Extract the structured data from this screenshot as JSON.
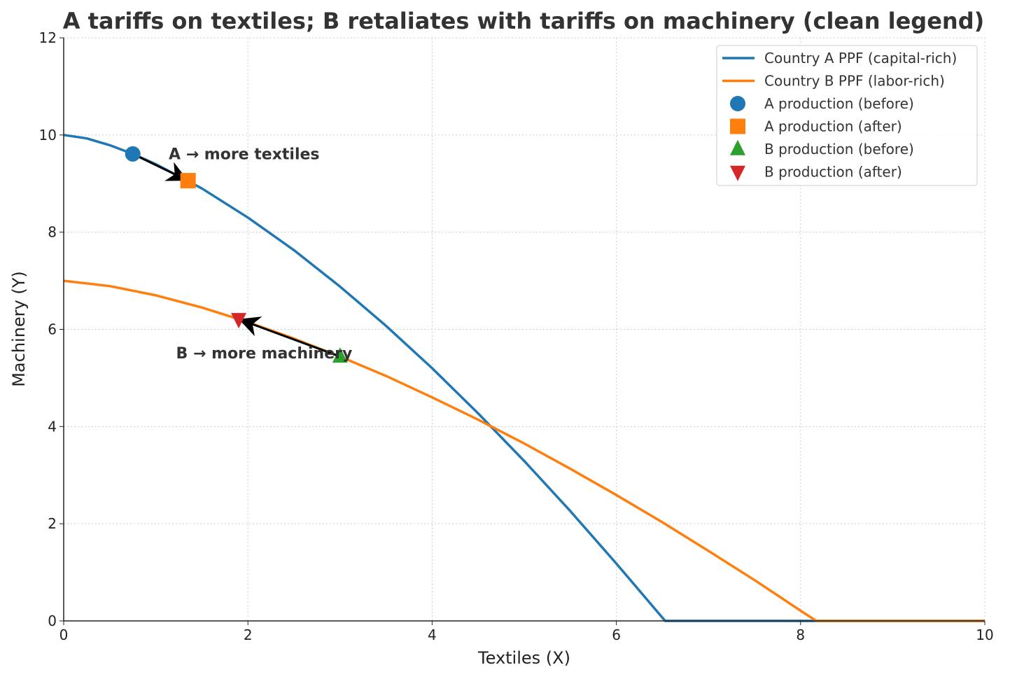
{
  "chart_data": {
    "type": "line",
    "title": "A tariffs on textiles; B retaliates with tariffs on machinery (clean legend)",
    "xlabel": "Textiles (X)",
    "ylabel": "Machinery (Y)",
    "xlim": [
      0,
      10
    ],
    "ylim": [
      0,
      12
    ],
    "xticks": [
      "0",
      "2",
      "4",
      "6",
      "8",
      "10"
    ],
    "yticks": [
      "0",
      "2",
      "4",
      "6",
      "8",
      "10",
      "12"
    ],
    "grid": true,
    "legend_position": "top-right",
    "series": [
      {
        "name": "Country A PPF (capital-rich)",
        "color": "#1f77b4",
        "x": [
          0,
          0.25,
          0.5,
          0.75,
          1,
          1.5,
          2,
          2.5,
          3,
          3.5,
          4,
          4.5,
          5,
          5.5,
          6,
          6.53,
          7,
          8,
          9,
          10
        ],
        "y": [
          10,
          9.93,
          9.79,
          9.61,
          9.4,
          8.9,
          8.3,
          7.63,
          6.88,
          6.07,
          5.2,
          4.27,
          3.29,
          2.26,
          1.18,
          0,
          0,
          0,
          0,
          0
        ]
      },
      {
        "name": "Country B PPF (labor-rich)",
        "color": "#ff7f0e",
        "x": [
          0,
          0.5,
          1,
          1.5,
          2,
          2.5,
          3,
          3.5,
          4,
          4.5,
          5,
          5.5,
          6,
          6.5,
          7,
          7.5,
          8,
          8.17,
          9,
          10
        ],
        "y": [
          7,
          6.89,
          6.7,
          6.45,
          6.15,
          5.81,
          5.44,
          5.04,
          4.6,
          4.14,
          3.65,
          3.13,
          2.59,
          2.03,
          1.44,
          0.84,
          0.21,
          0,
          0,
          0
        ]
      }
    ],
    "points": [
      {
        "name": "A production (before)",
        "marker": "circle",
        "color": "#1f77b4",
        "x": 0.75,
        "y": 9.61
      },
      {
        "name": "A production (after)",
        "marker": "square",
        "color": "#ff7f0e",
        "x": 1.35,
        "y": 9.06
      },
      {
        "name": "B production (before)",
        "marker": "triangle-up",
        "color": "#2ca02c",
        "x": 3.0,
        "y": 5.44
      },
      {
        "name": "B production (after)",
        "marker": "triangle-down",
        "color": "#d62728",
        "x": 1.9,
        "y": 6.21
      }
    ],
    "annotations": [
      {
        "text": "A → more textiles",
        "x": 1.14,
        "y": 9.5,
        "from": [
          0.75,
          9.61
        ],
        "to": [
          1.35,
          9.06
        ]
      },
      {
        "text": "B → more machinery",
        "x": 1.22,
        "y": 5.4,
        "from": [
          3.0,
          5.44
        ],
        "to": [
          1.9,
          6.21
        ]
      }
    ]
  }
}
